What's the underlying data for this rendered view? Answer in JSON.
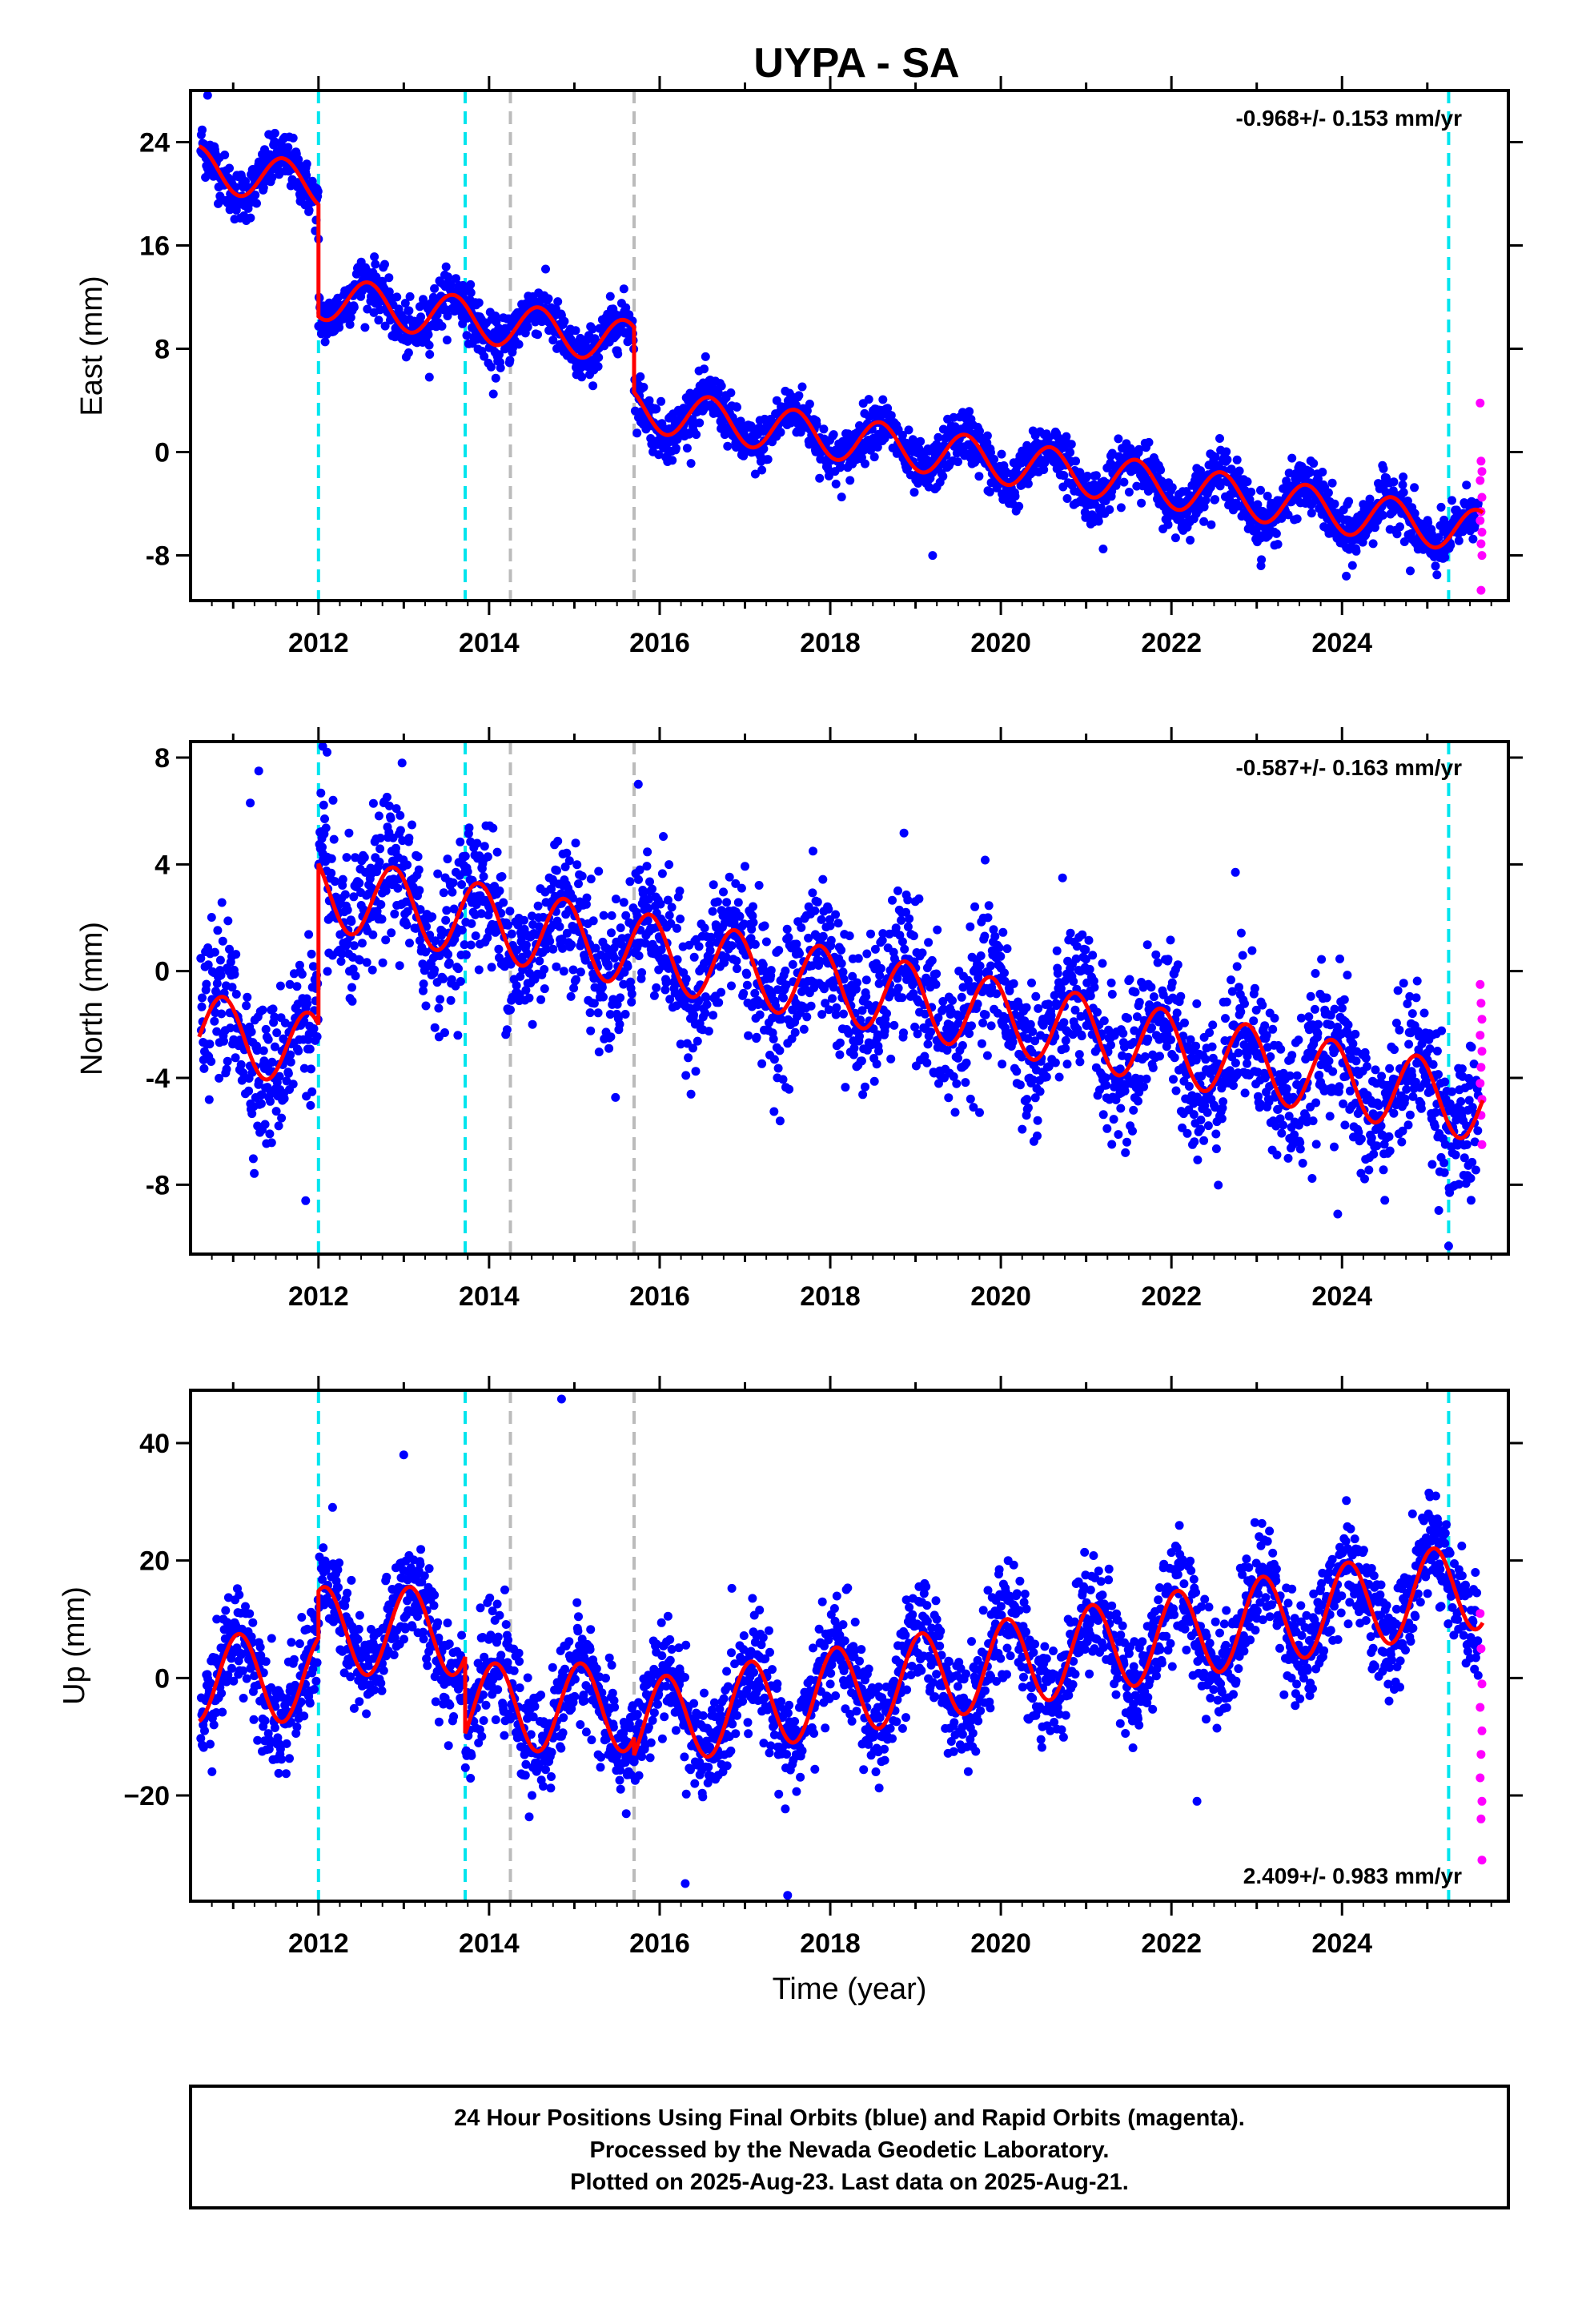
{
  "chart_data": [
    {
      "type": "scatter",
      "title": "UYPA - SA",
      "ylabel": "East (mm)",
      "rate_label": "-0.968+/- 0.153 mm/yr",
      "xlim": [
        2010.5,
        2025.95
      ],
      "ylim": [
        -11.5,
        28
      ],
      "xticks": [
        2012,
        2014,
        2016,
        2018,
        2020,
        2022,
        2024
      ],
      "yticks": [
        24,
        16,
        8,
        0,
        -8
      ],
      "ytick_labels": [
        "24",
        "16",
        "8",
        "0",
        "-8"
      ],
      "event_lines": [
        {
          "x": 2012.0,
          "color": "#00e5ee"
        },
        {
          "x": 2013.72,
          "color": "#00e5ee"
        },
        {
          "x": 2014.25,
          "color": "#bbbbbb"
        },
        {
          "x": 2015.7,
          "color": "#bbbbbb"
        },
        {
          "x": 2025.25,
          "color": "#00e5ee"
        }
      ],
      "series": [
        {
          "name": "Final Orbits (blue)",
          "color": "#0000ff"
        },
        {
          "name": "Rapid Orbits (magenta)",
          "color": "#ff00ff"
        },
        {
          "name": "model",
          "color": "#ff0000"
        }
      ],
      "model": {
        "type": "seasonal",
        "slope": -0.968,
        "amp": 1.7,
        "phase": 0.33,
        "segments": [
          {
            "x0": 2010.6,
            "x1": 2012.0,
            "y0": 22.0
          },
          {
            "x0": 2012.0,
            "x1": 2015.7,
            "y0": 12.0
          },
          {
            "x0": 2015.7,
            "x1": 2025.65,
            "y0": 3.4
          }
        ]
      },
      "scatter_sigma": 1.0,
      "outliers": [
        [
          2010.7,
          28
        ],
        [
          2011.45,
          24.5
        ],
        [
          2012.0,
          16.5
        ],
        [
          2013.3,
          5.8
        ],
        [
          2014.05,
          4.5
        ],
        [
          2019.2,
          -8
        ],
        [
          2021.2,
          -7.5
        ],
        [
          2023.05,
          -8.8
        ],
        [
          2024.05,
          -9.6
        ],
        [
          2024.8,
          -9.2
        ]
      ],
      "rapid_points": [
        [
          2025.62,
          3.8
        ],
        [
          2025.63,
          -0.7
        ],
        [
          2025.64,
          -1.5
        ],
        [
          2025.62,
          -2.2
        ],
        [
          2025.64,
          -3.5
        ],
        [
          2025.63,
          -4.6
        ],
        [
          2025.62,
          -5.3
        ],
        [
          2025.64,
          -6.2
        ],
        [
          2025.63,
          -7.1
        ],
        [
          2025.64,
          -8.0
        ],
        [
          2025.63,
          -10.7
        ]
      ]
    },
    {
      "type": "scatter",
      "ylabel": "North (mm)",
      "rate_label": "-0.587+/- 0.163 mm/yr",
      "xlim": [
        2010.5,
        2025.95
      ],
      "ylim": [
        -10.6,
        8.6
      ],
      "xticks": [
        2012,
        2014,
        2016,
        2018,
        2020,
        2022,
        2024
      ],
      "yticks": [
        8,
        4,
        0,
        -4,
        -8
      ],
      "ytick_labels": [
        "8",
        "4",
        "0",
        "-4",
        "-8"
      ],
      "event_lines": [
        {
          "x": 2012.0,
          "color": "#00e5ee"
        },
        {
          "x": 2013.72,
          "color": "#00e5ee"
        },
        {
          "x": 2014.25,
          "color": "#bbbbbb"
        },
        {
          "x": 2015.7,
          "color": "#bbbbbb"
        },
        {
          "x": 2025.25,
          "color": "#00e5ee"
        }
      ],
      "series": [
        {
          "name": "Final Orbits (blue)",
          "color": "#0000ff"
        },
        {
          "name": "Rapid Orbits (magenta)",
          "color": "#ff00ff"
        },
        {
          "name": "model",
          "color": "#ff0000"
        }
      ],
      "model": {
        "type": "seasonal",
        "slope": -0.587,
        "amp": 1.4,
        "phase": 0.63,
        "segments": [
          {
            "x0": 2010.6,
            "x1": 2012.0,
            "y0": -2.2
          },
          {
            "x0": 2012.0,
            "x1": 2025.65,
            "y0": 3.0
          }
        ]
      },
      "scatter_sigma": 1.35,
      "outliers": [
        [
          2011.3,
          7.5
        ],
        [
          2011.2,
          6.3
        ],
        [
          2011.85,
          -8.6
        ],
        [
          2012.05,
          8.5
        ],
        [
          2012.1,
          8.2
        ],
        [
          2012.98,
          7.8
        ],
        [
          2015.75,
          7.0
        ],
        [
          2019.75,
          -5.3
        ],
        [
          2020.3,
          -5.4
        ],
        [
          2022.75,
          3.7
        ],
        [
          2023.95,
          -9.1
        ],
        [
          2025.25,
          -10.3
        ]
      ],
      "rapid_points": [
        [
          2025.62,
          -0.5
        ],
        [
          2025.63,
          -1.2
        ],
        [
          2025.64,
          -1.8
        ],
        [
          2025.62,
          -2.4
        ],
        [
          2025.64,
          -3.0
        ],
        [
          2025.63,
          -3.6
        ],
        [
          2025.62,
          -4.2
        ],
        [
          2025.64,
          -4.8
        ],
        [
          2025.63,
          -5.4
        ],
        [
          2025.64,
          -6.5
        ]
      ]
    },
    {
      "type": "scatter",
      "ylabel": "Up (mm)",
      "xlabel": "Time (year)",
      "rate_label": "2.409+/- 0.983 mm/yr",
      "xlim": [
        2010.5,
        2025.95
      ],
      "ylim": [
        -38,
        49
      ],
      "xticks": [
        2012,
        2014,
        2016,
        2018,
        2020,
        2022,
        2024
      ],
      "yticks": [
        40,
        20,
        0,
        -20
      ],
      "ytick_labels": [
        "40",
        "20",
        "0",
        "−20"
      ],
      "event_lines": [
        {
          "x": 2012.0,
          "color": "#00e5ee"
        },
        {
          "x": 2013.72,
          "color": "#00e5ee"
        },
        {
          "x": 2014.25,
          "color": "#bbbbbb"
        },
        {
          "x": 2015.7,
          "color": "#bbbbbb"
        },
        {
          "x": 2025.25,
          "color": "#00e5ee"
        }
      ],
      "series": [
        {
          "name": "Final Orbits (blue)",
          "color": "#0000ff"
        },
        {
          "name": "Rapid Orbits (magenta)",
          "color": "#ff00ff"
        },
        {
          "name": "model",
          "color": "#ff0000"
        }
      ],
      "model": {
        "type": "seasonal",
        "slope": 0.0,
        "amp": 7.5,
        "phase": 0.82,
        "segments": [
          {
            "x0": 2010.6,
            "x1": 2012.0,
            "y0": 0.0
          },
          {
            "x0": 2012.0,
            "x1": 2013.72,
            "y0": 8.0
          },
          {
            "x0": 2013.72,
            "x1": 2015.7,
            "y0": -5.0
          },
          {
            "x0": 2015.7,
            "x1": 2025.65,
            "y0": -8.0,
            "slope": 2.409
          }
        ]
      },
      "scatter_sigma": 4.5,
      "outliers": [
        [
          2013.0,
          38
        ],
        [
          2014.85,
          47.5
        ],
        [
          2016.3,
          -35
        ],
        [
          2017.5,
          -37
        ],
        [
          2025.1,
          31
        ],
        [
          2022.3,
          -21
        ]
      ],
      "rapid_points": [
        [
          2025.62,
          11
        ],
        [
          2025.63,
          5
        ],
        [
          2025.64,
          -1
        ],
        [
          2025.62,
          -5
        ],
        [
          2025.64,
          -9
        ],
        [
          2025.63,
          -13
        ],
        [
          2025.62,
          -17
        ],
        [
          2025.64,
          -21
        ],
        [
          2025.63,
          -24
        ],
        [
          2025.64,
          -31
        ]
      ]
    }
  ],
  "footer": {
    "line1": "24 Hour Positions Using Final Orbits (blue) and Rapid Orbits (magenta).",
    "line2": "Processed by the Nevada Geodetic Laboratory.",
    "line3": "Plotted on 2025-Aug-23. Last data on 2025-Aug-21."
  }
}
